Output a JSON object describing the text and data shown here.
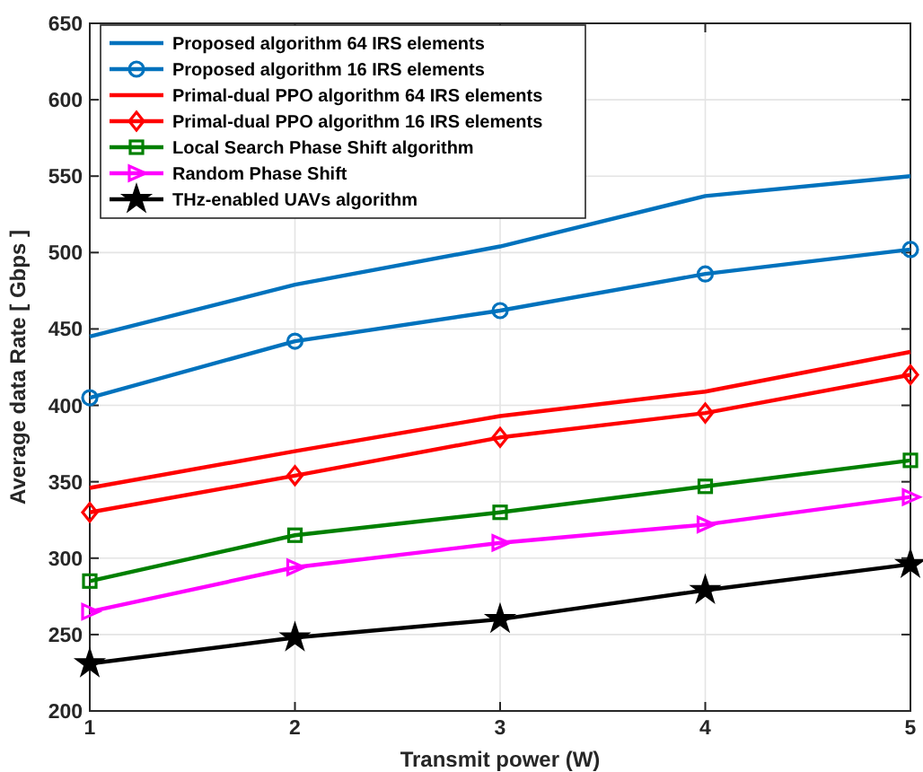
{
  "chart_data": {
    "type": "line",
    "xlabel": "Transmit power (W)",
    "ylabel": "Average data Rate [ Gbps ]",
    "x": [
      1,
      2,
      3,
      4,
      5
    ],
    "xlim": [
      1,
      5
    ],
    "xticks": [
      1,
      2,
      3,
      4,
      5
    ],
    "ylim": [
      200,
      650
    ],
    "yticks": [
      200,
      250,
      300,
      350,
      400,
      450,
      500,
      550,
      600,
      650
    ],
    "grid": true,
    "legend": "top left",
    "line_style": "solid",
    "series": [
      {
        "name": "Proposed algorithm 64 IRS elements",
        "color": "#0072bd",
        "marker": "none",
        "values": [
          445,
          479,
          504,
          537,
          550
        ]
      },
      {
        "name": "Proposed algorithm 16 IRS elements",
        "color": "#0072bd",
        "marker": "circle",
        "values": [
          405,
          442,
          462,
          486,
          502
        ]
      },
      {
        "name": "Primal-dual PPO algorithm 64 IRS elements",
        "color": "#ff0000",
        "marker": "none",
        "values": [
          346,
          370,
          393,
          409,
          435
        ]
      },
      {
        "name": "Primal-dual PPO algorithm 16 IRS elements",
        "color": "#ff0000",
        "marker": "diamond",
        "values": [
          330,
          354,
          379,
          395,
          420
        ]
      },
      {
        "name": "Local Search Phase Shift algorithm",
        "color": "#008000",
        "marker": "square",
        "values": [
          285,
          315,
          330,
          347,
          364
        ]
      },
      {
        "name": "Random Phase Shift",
        "color": "#ff00ff",
        "marker": "triangle",
        "values": [
          265,
          294,
          310,
          322,
          340
        ]
      },
      {
        "name": "THz-enabled UAVs algorithm",
        "color": "#000000",
        "marker": "star",
        "values": [
          231,
          248,
          260,
          279,
          296
        ]
      }
    ]
  }
}
